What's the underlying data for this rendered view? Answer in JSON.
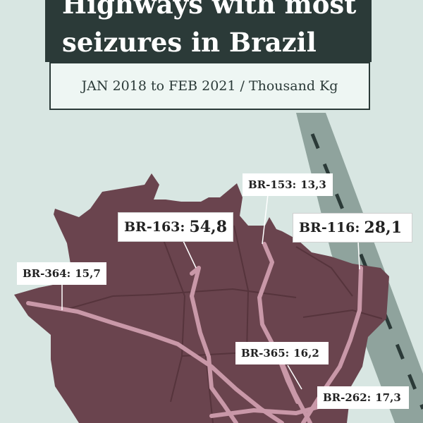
{
  "title": {
    "line1": "Highways with most",
    "line2": "seizures in Brazil"
  },
  "subtitle": "JAN 2018 to FEB 2021 / Thousand Kg",
  "colors": {
    "background": "#d8e6e2",
    "land": "#6a444e",
    "highway": "#c998a8",
    "title_box": "#2b3a38",
    "decorative_road": "#8fa39d"
  },
  "highways": [
    {
      "id": "BR-163",
      "label": "BR-163:",
      "value": "54,8"
    },
    {
      "id": "BR-116",
      "label": "BR-116:",
      "value": "28,1"
    },
    {
      "id": "BR-262",
      "label": "BR-262:",
      "value": "17,3"
    },
    {
      "id": "BR-365",
      "label": "BR-365:",
      "value": "16,2"
    },
    {
      "id": "BR-364",
      "label": "BR-364:",
      "value": "15,7"
    },
    {
      "id": "BR-153",
      "label": "BR-153:",
      "value": "13,3"
    }
  ]
}
